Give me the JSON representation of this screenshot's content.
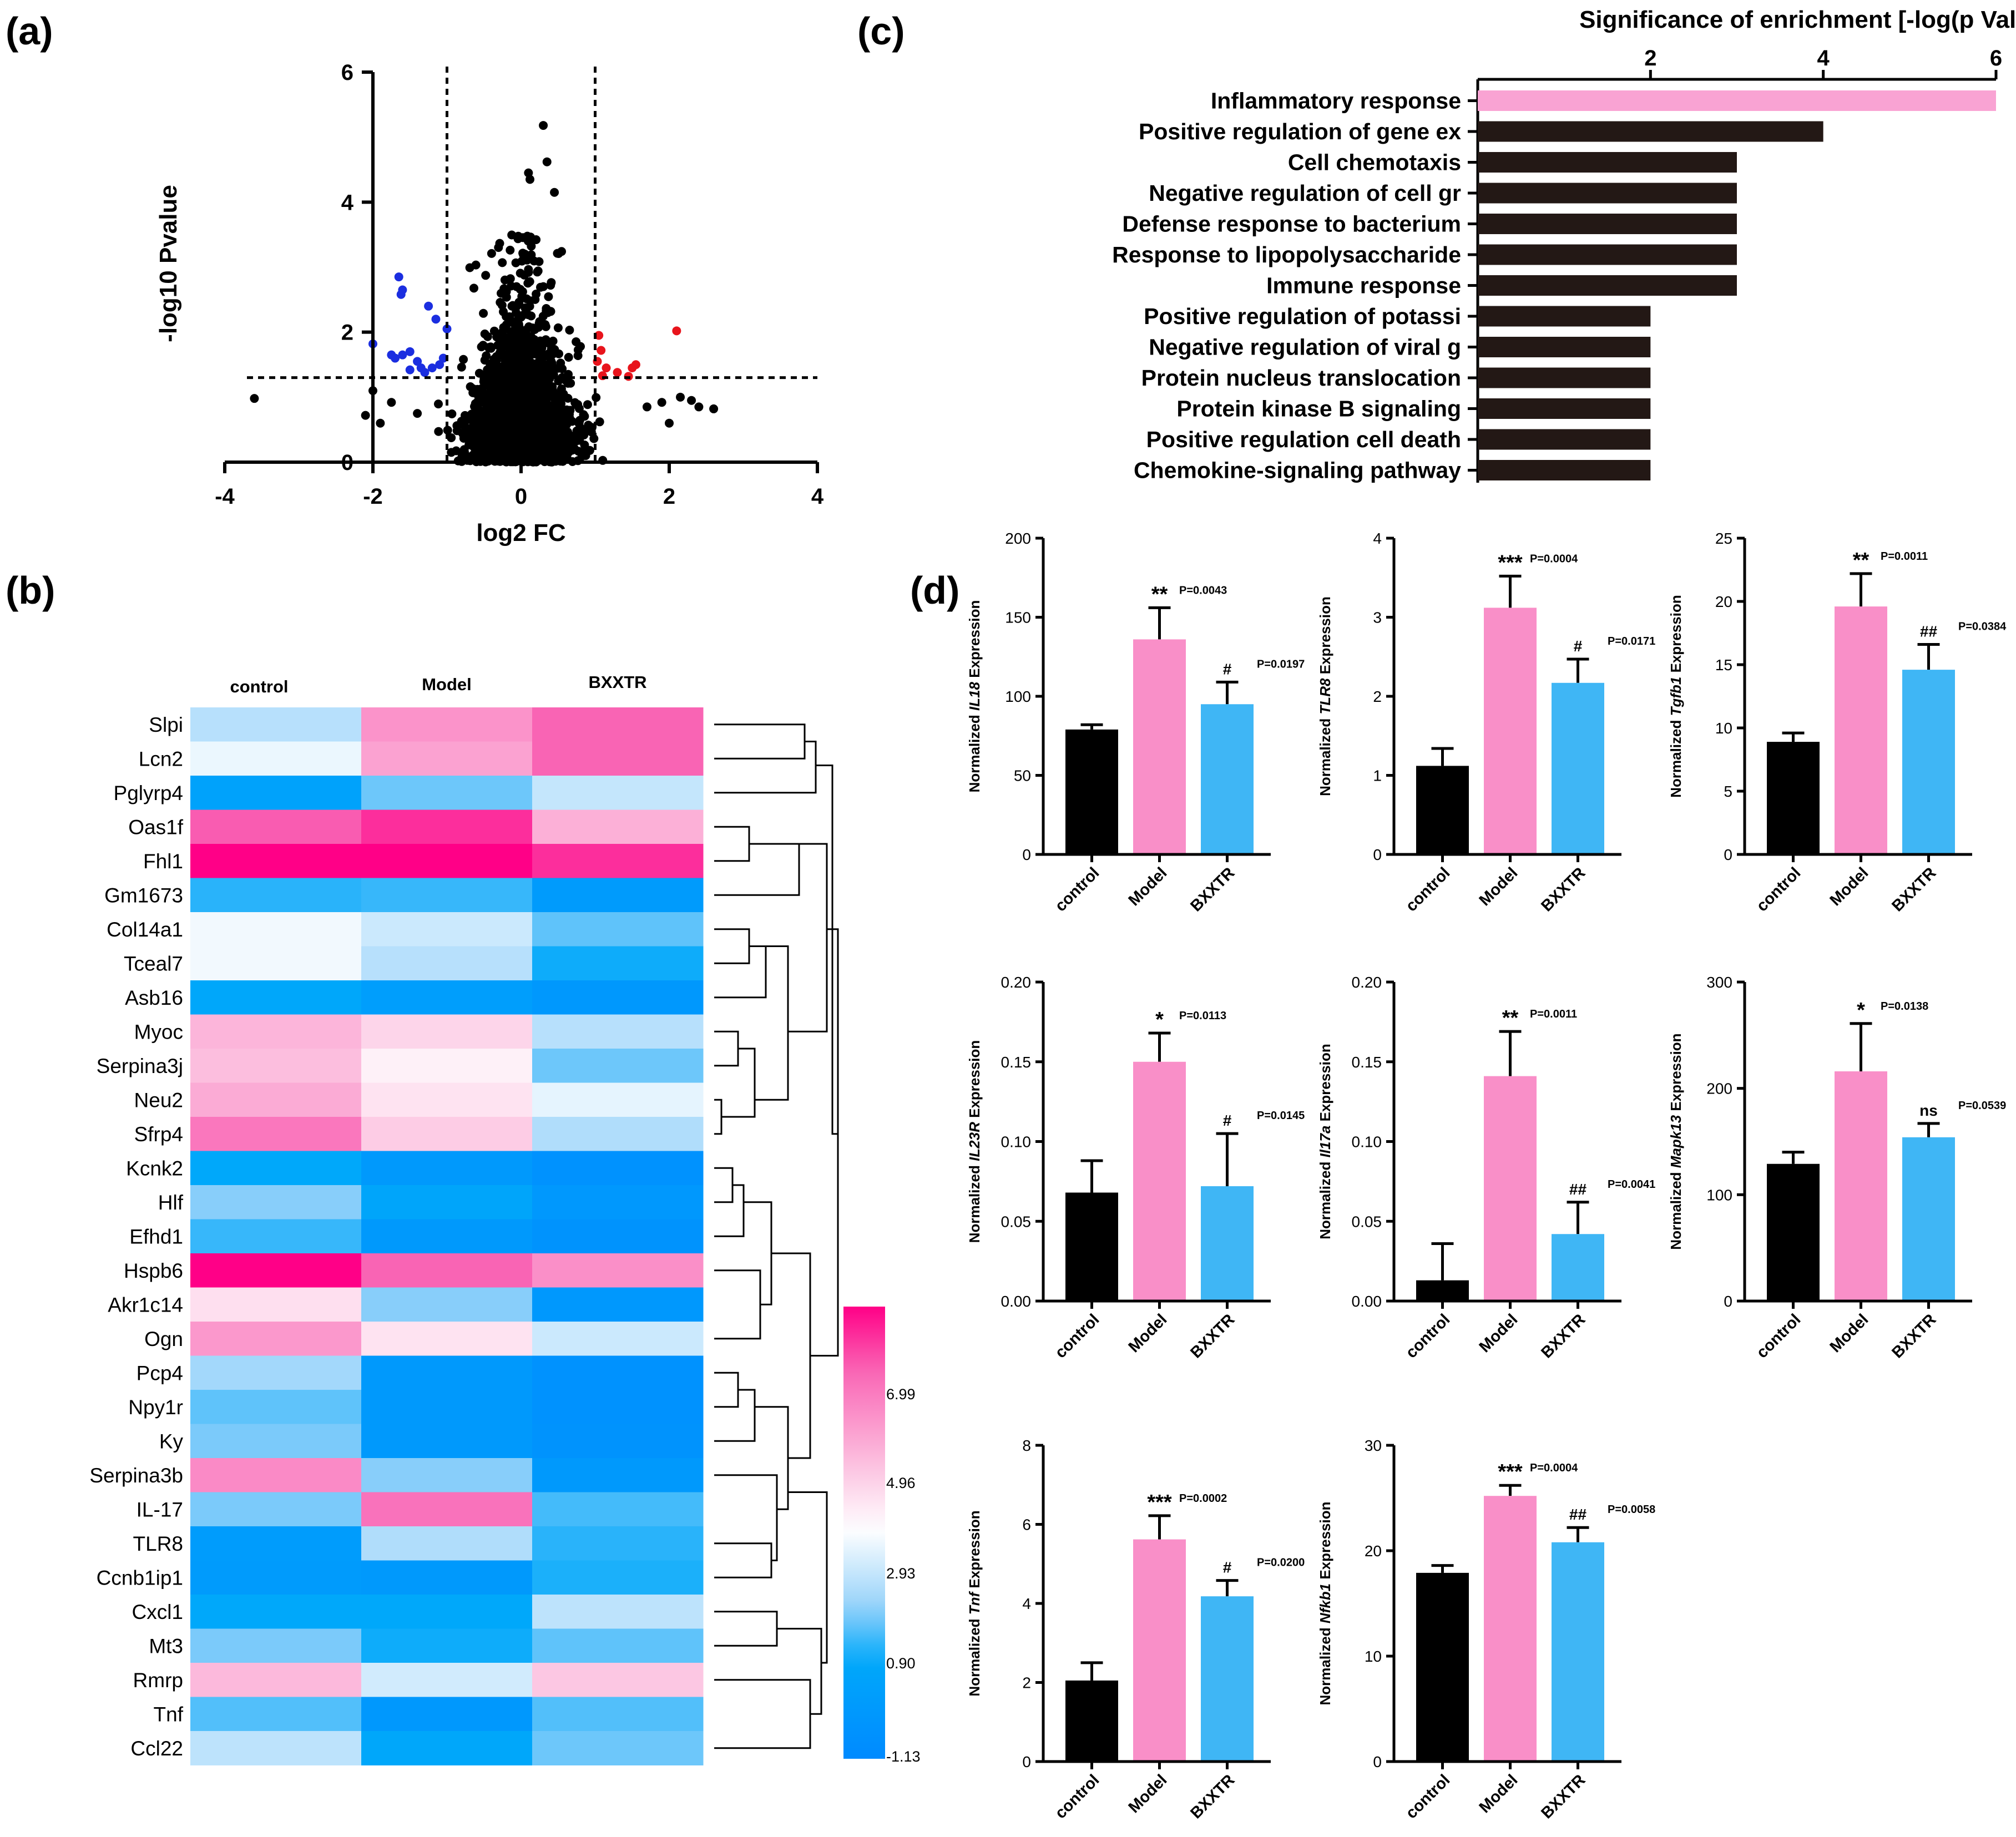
{
  "panel_labels": {
    "a": "(a)",
    "b": "(b)",
    "c": "(c)",
    "d": "(d)"
  },
  "colors": {
    "pink": "#f98fc8",
    "blue": "#3fb6f5",
    "black": "#000000",
    "go_pink": "#f9a3d3",
    "go_dark": "#231815",
    "up": "#e8141c",
    "down": "#1b2ee0"
  },
  "chart_data": [
    {
      "type": "scatter",
      "id": "volcano",
      "xlabel": "log2 FC",
      "ylabel": "-log10 Pvalue",
      "xlim": [
        -4,
        4
      ],
      "ylim": [
        0,
        6
      ],
      "xticks": [
        "-4",
        "-2",
        "0",
        "2",
        "4"
      ],
      "yticks": [
        "0",
        "2",
        "4",
        "6"
      ],
      "thresholds": {
        "x": [
          -1,
          1
        ],
        "y": 1.3
      },
      "up_points": [
        [
          1.05,
          1.95
        ],
        [
          1.08,
          1.72
        ],
        [
          1.15,
          1.45
        ],
        [
          1.1,
          1.33
        ],
        [
          1.3,
          1.38
        ],
        [
          1.45,
          1.32
        ],
        [
          1.5,
          1.45
        ],
        [
          1.55,
          1.5
        ],
        [
          2.1,
          2.02
        ],
        [
          1.03,
          1.55
        ]
      ],
      "down_points": [
        [
          -1.65,
          2.85
        ],
        [
          -1.6,
          2.65
        ],
        [
          -1.62,
          2.58
        ],
        [
          -1.25,
          2.4
        ],
        [
          -1.15,
          2.2
        ],
        [
          -1.0,
          2.05
        ],
        [
          -2.0,
          1.82
        ],
        [
          -1.75,
          1.65
        ],
        [
          -1.6,
          1.65
        ],
        [
          -1.5,
          1.7
        ],
        [
          -1.4,
          1.55
        ],
        [
          -1.35,
          1.45
        ],
        [
          -1.5,
          1.42
        ],
        [
          -1.3,
          1.38
        ],
        [
          -1.2,
          1.45
        ],
        [
          -1.1,
          1.5
        ],
        [
          -1.05,
          1.6
        ],
        [
          -1.7,
          1.6
        ]
      ],
      "ns_extra_points": [
        [
          -3.6,
          0.98
        ],
        [
          -2.0,
          1.1
        ],
        [
          -2.1,
          0.72
        ],
        [
          -1.9,
          0.6
        ],
        [
          -1.75,
          0.92
        ],
        [
          -1.4,
          0.75
        ],
        [
          0.3,
          5.18
        ],
        [
          0.35,
          4.62
        ],
        [
          0.1,
          4.45
        ],
        [
          0.12,
          4.35
        ],
        [
          0.45,
          4.15
        ],
        [
          2.3,
          0.95
        ],
        [
          2.4,
          0.85
        ],
        [
          2.6,
          0.82
        ],
        [
          2.0,
          0.6
        ],
        [
          1.9,
          0.92
        ],
        [
          1.7,
          0.85
        ],
        [
          2.15,
          1.0
        ]
      ]
    },
    {
      "type": "heatmap",
      "id": "heatmap",
      "columns": [
        "control",
        "Model",
        "BXXTR"
      ],
      "rows": [
        "Slpi",
        "Lcn2",
        "Pglyrp4",
        "Oas1f",
        "Fhl1",
        "Gm1673",
        "Col14a1",
        "Tceal7",
        "Asb16",
        "Myoc",
        "Serpina3j",
        "Neu2",
        "Sfrp4",
        "Kcnk2",
        "Hlf",
        "Efhd1",
        "Hspb6",
        "Akr1c14",
        "Ogn",
        "Pcp4",
        "Npy1r",
        "Ky",
        "Serpina3b",
        "IL-17",
        "TLR8",
        "Ccnb1ip1",
        "Cxcl1",
        "Mt3",
        "Rmrp",
        "Tnf",
        "Ccl22"
      ],
      "highlight_rows": [
        "IL-17",
        "TLR8",
        "Cxcl1",
        "Tnf",
        "Ccl22"
      ],
      "values": [
        [
          2.5,
          5.9,
          6.9
        ],
        [
          3.3,
          5.6,
          6.9
        ],
        [
          0.5,
          1.7,
          2.7
        ],
        [
          7.0,
          7.6,
          5.3
        ],
        [
          8.6,
          8.5,
          7.6
        ],
        [
          1.2,
          1.3,
          0.0
        ],
        [
          3.4,
          2.8,
          1.6
        ],
        [
          3.4,
          2.5,
          1.0
        ],
        [
          0.8,
          0.2,
          -0.2
        ],
        [
          5.2,
          4.5,
          2.5
        ],
        [
          5.0,
          3.9,
          1.7
        ],
        [
          5.4,
          4.2,
          3.2
        ],
        [
          6.5,
          4.7,
          2.4
        ],
        [
          0.9,
          -0.1,
          -0.6
        ],
        [
          1.9,
          0.7,
          -0.2
        ],
        [
          1.3,
          -0.1,
          -0.5
        ],
        [
          8.4,
          6.9,
          6.0
        ],
        [
          4.3,
          1.9,
          -0.2
        ],
        [
          5.8,
          4.2,
          2.8
        ],
        [
          2.2,
          -0.1,
          -0.6
        ],
        [
          1.6,
          -0.1,
          -0.6
        ],
        [
          1.8,
          -0.1,
          -0.5
        ],
        [
          6.1,
          1.9,
          -0.1
        ],
        [
          1.8,
          6.6,
          1.4
        ],
        [
          0.1,
          2.4,
          1.2
        ],
        [
          0.0,
          -0.1,
          1.1
        ],
        [
          0.9,
          0.9,
          2.6
        ],
        [
          1.8,
          1.0,
          1.6
        ],
        [
          5.1,
          2.9,
          4.8
        ],
        [
          1.5,
          -0.2,
          1.5
        ],
        [
          2.6,
          0.8,
          1.7
        ]
      ],
      "scale_ticks": [
        "6.99",
        "4.96",
        "2.93",
        "0.90",
        "-1.13"
      ],
      "scale_range": [
        -1.13,
        8.2
      ]
    },
    {
      "type": "bar",
      "id": "go_enrichment",
      "title": "Significance of enrichment [-log(p Value)]",
      "xticks": [
        "2",
        "4",
        "6"
      ],
      "xlim": [
        0,
        6
      ],
      "categories": [
        "Inflammatory response",
        "Positive regulation of gene ex",
        "Cell chemotaxis",
        "Negative regulation of cell gr",
        "Defense response to bacterium",
        "Response to lipopolysaccharide",
        "Immune response",
        "Positive regulation of potassi",
        "Negative regulation of viral g",
        "Protein nucleus  translocation",
        "Protein kinase B signaling",
        "Positive regulation cell death",
        "Chemokine-signaling pathway"
      ],
      "values": [
        6,
        4,
        3,
        3,
        3,
        3,
        3,
        2,
        2,
        2,
        2,
        2,
        2
      ]
    },
    {
      "type": "bar",
      "id": "qpcr_bars",
      "categories": [
        "control",
        "Model",
        "BXXTR"
      ],
      "ylabel_prefix": "Normalized",
      "ylabel_suffix": "Expression",
      "panels": [
        {
          "gene": "IL18",
          "ymax": 200,
          "yticks": [
            "0",
            "50",
            "100",
            "150",
            "200"
          ],
          "values": [
            79,
            136,
            95
          ],
          "errors": [
            3,
            20,
            14
          ],
          "sig_model": "**",
          "p_model": "P=0.0043",
          "sig_bxx": "#",
          "p_bxx": "P=0.0197"
        },
        {
          "gene": "TLR8",
          "ymax": 4,
          "yticks": [
            "0",
            "1",
            "2",
            "3",
            "4"
          ],
          "values": [
            1.12,
            3.12,
            2.17
          ],
          "errors": [
            0.22,
            0.4,
            0.3
          ],
          "sig_model": "***",
          "p_model": "P=0.0004",
          "sig_bxx": "#",
          "p_bxx": "P=0.0171"
        },
        {
          "gene": "Tgfb1",
          "ymax": 25,
          "yticks": [
            "0",
            "5",
            "10",
            "15",
            "20",
            "25"
          ],
          "values": [
            8.9,
            19.6,
            14.6
          ],
          "errors": [
            0.7,
            2.6,
            2.0
          ],
          "sig_model": "**",
          "p_model": "P=0.0011",
          "sig_bxx": "##",
          "p_bxx": "P=0.0384"
        },
        {
          "gene": "IL23R",
          "ymax": 0.2,
          "yticks": [
            "0.00",
            "0.05",
            "0.10",
            "0.15",
            "0.20"
          ],
          "values": [
            0.068,
            0.15,
            0.072
          ],
          "errors": [
            0.02,
            0.018,
            0.033
          ],
          "sig_model": "*",
          "p_model": "P=0.0113",
          "sig_bxx": "#",
          "p_bxx": "P=0.0145"
        },
        {
          "gene": "Il17a",
          "ymax": 0.2,
          "yticks": [
            "0.00",
            "0.05",
            "0.10",
            "0.15",
            "0.20"
          ],
          "values": [
            0.013,
            0.141,
            0.042
          ],
          "errors": [
            0.023,
            0.028,
            0.02
          ],
          "sig_model": "**",
          "p_model": "P=0.0011",
          "sig_bxx": "##",
          "p_bxx": "P=0.0041"
        },
        {
          "gene": "Mapk13",
          "ymax": 300,
          "yticks": [
            "0",
            "100",
            "200",
            "300"
          ],
          "values": [
            129,
            216,
            154
          ],
          "errors": [
            11,
            45,
            13
          ],
          "sig_model": "*",
          "p_model": "P=0.0138",
          "sig_bxx": "ns",
          "p_bxx": "P=0.0539"
        },
        {
          "gene": "Tnf",
          "ymax": 8,
          "yticks": [
            "0",
            "2",
            "4",
            "6",
            "8"
          ],
          "values": [
            2.05,
            5.62,
            4.18
          ],
          "errors": [
            0.45,
            0.6,
            0.4
          ],
          "sig_model": "***",
          "p_model": "P=0.0002",
          "sig_bxx": "#",
          "p_bxx": "P=0.0200"
        },
        {
          "gene": "Nfkb1",
          "ymax": 30,
          "yticks": [
            "0",
            "10",
            "20",
            "30"
          ],
          "values": [
            17.9,
            25.2,
            20.8
          ],
          "errors": [
            0.7,
            1.0,
            1.4
          ],
          "sig_model": "***",
          "p_model": "P=0.0004",
          "sig_bxx": "##",
          "p_bxx": "P=0.0058"
        }
      ]
    }
  ]
}
